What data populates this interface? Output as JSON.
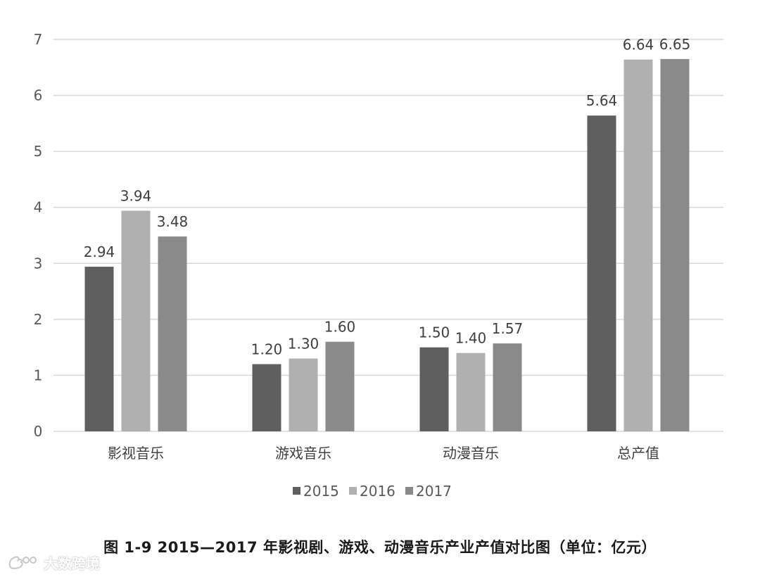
{
  "chart_data": {
    "type": "bar",
    "categories": [
      "影视音乐",
      "游戏音乐",
      "动漫音乐",
      "总产值"
    ],
    "series": [
      {
        "name": "2015",
        "values": [
          2.94,
          1.2,
          1.5,
          5.64
        ],
        "labels": [
          "2.94",
          "1.20",
          "1.50",
          "5.64"
        ],
        "color": "#5f5f5f"
      },
      {
        "name": "2016",
        "values": [
          3.94,
          1.3,
          1.4,
          6.64
        ],
        "labels": [
          "3.94",
          "1.30",
          "1.40",
          "6.64"
        ],
        "color": "#b0b0b0"
      },
      {
        "name": "2017",
        "values": [
          3.48,
          1.6,
          1.57,
          6.65
        ],
        "labels": [
          "3.48",
          "1.60",
          "1.57",
          "6.65"
        ],
        "color": "#8a8a8a"
      }
    ],
    "ylim": [
      0,
      7
    ],
    "yticks": [
      0,
      1,
      2,
      3,
      4,
      5,
      6,
      7
    ],
    "grid": true,
    "legend_position": "bottom",
    "gridline_color": "#d9d9d9"
  },
  "caption": "图 1-9 2015—2017 年影视剧、游戏、动漫音乐产业产值对比图（单位：亿元）",
  "watermark": {
    "text": "大数跨境",
    "icon": "weibo-logo-icon"
  }
}
